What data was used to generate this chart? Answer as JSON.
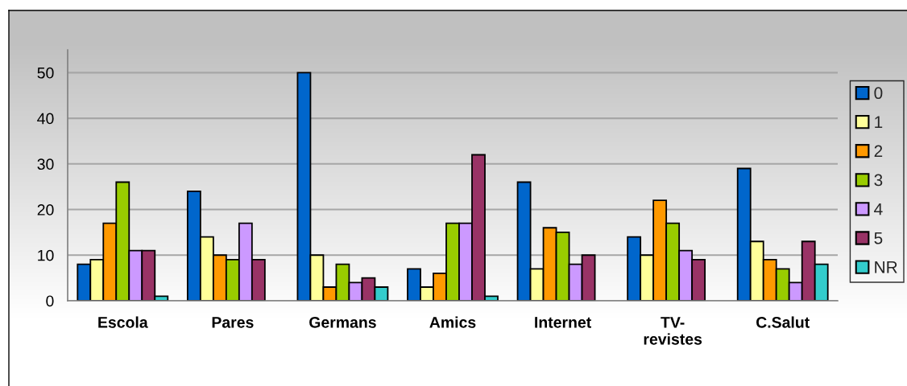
{
  "chart_data": {
    "type": "bar",
    "categories": [
      "Escola",
      "Pares",
      "Germans",
      "Amics",
      "Internet",
      "TV-\nrevistes",
      "C.Salut"
    ],
    "series": [
      {
        "name": "0",
        "color": "#0066cc",
        "values": [
          8,
          24,
          50,
          7,
          26,
          14,
          29
        ]
      },
      {
        "name": "1",
        "color": "#ffff99",
        "values": [
          9,
          14,
          10,
          3,
          7,
          10,
          13
        ]
      },
      {
        "name": "2",
        "color": "#ff9900",
        "values": [
          17,
          10,
          3,
          6,
          16,
          22,
          9
        ]
      },
      {
        "name": "3",
        "color": "#99cc00",
        "values": [
          26,
          9,
          8,
          17,
          15,
          17,
          7
        ]
      },
      {
        "name": "4",
        "color": "#cc99ff",
        "values": [
          11,
          17,
          4,
          17,
          8,
          11,
          4
        ]
      },
      {
        "name": "5",
        "color": "#993366",
        "values": [
          11,
          9,
          5,
          32,
          10,
          9,
          13
        ]
      },
      {
        "name": "NR",
        "color": "#33cccc",
        "values": [
          1,
          null,
          3,
          1,
          null,
          null,
          8
        ]
      }
    ],
    "ylim": [
      0,
      55
    ],
    "yticks": [
      0,
      10,
      20,
      30,
      40,
      50
    ],
    "grid": "y",
    "legend": "right"
  }
}
